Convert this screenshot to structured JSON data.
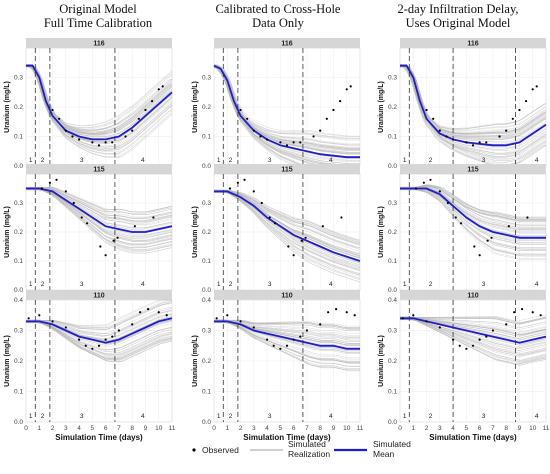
{
  "column_titles": [
    [
      "Original Model",
      "Full Time Calibration"
    ],
    [
      "Calibrated to Cross-Hole",
      "Data Only"
    ],
    [
      "2-day Infiltration Delay,",
      "Uses Original Model"
    ]
  ],
  "legend": {
    "observed": "Observed",
    "realization": [
      "Simulated",
      "Realization"
    ],
    "mean": [
      "Simulated",
      "Mean"
    ]
  },
  "colors": {
    "mean": "#1f1fc8",
    "realization": "#b4b4b4",
    "observed": "#000000",
    "strip": "#d6d6d6",
    "panel_bg": "#ffffff",
    "grid": "#ebebeb"
  },
  "chart_data": {
    "type": "line",
    "xlabel": "Simulation Time (days)",
    "ylabel": "Uranium (mg/L)",
    "xlim": [
      0,
      11
    ],
    "xticks": [
      0,
      1,
      2,
      3,
      4,
      5,
      6,
      7,
      8,
      9,
      10,
      11
    ],
    "rows": [
      {
        "strip": "116",
        "ylim": [
          0,
          0.4
        ],
        "yticks": [
          0.0,
          0.1,
          0.2,
          0.3
        ]
      },
      {
        "strip": "115",
        "ylim": [
          0,
          0.4
        ],
        "yticks": [
          0.0,
          0.1,
          0.2,
          0.3
        ]
      },
      {
        "strip": "110",
        "ylim": [
          0,
          0.4
        ],
        "yticks": [
          0.0,
          0.1,
          0.2,
          0.3,
          0.4
        ]
      }
    ],
    "phase_lines": {
      "columns_1_2": [
        0.7,
        1.8,
        6.7
      ],
      "column_3": [
        0.7,
        4.0,
        8.7
      ]
    },
    "phase_labels": {
      "columns_1_2": [
        {
          "t": "1",
          "x": 0.35
        },
        {
          "t": "2",
          "x": 1.25
        },
        {
          "t": "3",
          "x": 4.2
        },
        {
          "t": "4",
          "x": 8.8
        }
      ],
      "column_3": [
        {
          "t": "1",
          "x": 0.35
        },
        {
          "t": "2",
          "x": 2.3
        },
        {
          "t": "3",
          "x": 6.3
        },
        {
          "t": "4",
          "x": 10.3
        }
      ]
    },
    "series": [
      {
        "name": "Observed",
        "panel": "116",
        "points": [
          [
            2.0,
            0.19
          ],
          [
            2.5,
            0.16
          ],
          [
            3.0,
            0.12
          ],
          [
            3.5,
            0.1
          ],
          [
            4.0,
            0.09
          ],
          [
            5.0,
            0.08
          ],
          [
            5.5,
            0.07
          ],
          [
            6.0,
            0.08
          ],
          [
            6.5,
            0.08
          ],
          [
            7.5,
            0.1
          ],
          [
            8.0,
            0.12
          ],
          [
            8.5,
            0.16
          ],
          [
            9.0,
            0.19
          ],
          [
            9.5,
            0.22
          ],
          [
            10.0,
            0.26
          ],
          [
            10.3,
            0.27
          ]
        ]
      },
      {
        "name": "Observed",
        "panel": "115",
        "points": [
          [
            1.2,
            0.35
          ],
          [
            1.8,
            0.37
          ],
          [
            2.3,
            0.38
          ],
          [
            3.0,
            0.34
          ],
          [
            3.6,
            0.3
          ],
          [
            4.2,
            0.25
          ],
          [
            4.6,
            0.23
          ],
          [
            5.6,
            0.15
          ],
          [
            6.0,
            0.12
          ],
          [
            6.6,
            0.17
          ],
          [
            6.9,
            0.18
          ],
          [
            8.2,
            0.22
          ],
          [
            9.6,
            0.25
          ]
        ]
      },
      {
        "name": "Observed",
        "panel": "110",
        "points": [
          [
            0.2,
            0.34
          ],
          [
            1.0,
            0.35
          ],
          [
            2.0,
            0.33
          ],
          [
            3.0,
            0.31
          ],
          [
            4.0,
            0.27
          ],
          [
            4.5,
            0.25
          ],
          [
            5.0,
            0.24
          ],
          [
            5.5,
            0.25
          ],
          [
            6.0,
            0.27
          ],
          [
            6.5,
            0.28
          ],
          [
            7.0,
            0.3
          ],
          [
            8.0,
            0.32
          ],
          [
            8.6,
            0.36
          ],
          [
            9.2,
            0.37
          ],
          [
            10.0,
            0.36
          ],
          [
            10.6,
            0.35
          ]
        ]
      },
      {
        "name": "Simulated Mean",
        "panel": "116",
        "column": 1,
        "points": [
          [
            0,
            0.34
          ],
          [
            0.5,
            0.34
          ],
          [
            1,
            0.3
          ],
          [
            1.5,
            0.22
          ],
          [
            2,
            0.17
          ],
          [
            3,
            0.12
          ],
          [
            4,
            0.1
          ],
          [
            5,
            0.09
          ],
          [
            6,
            0.09
          ],
          [
            7,
            0.1
          ],
          [
            8,
            0.13
          ],
          [
            9,
            0.17
          ],
          [
            10,
            0.21
          ],
          [
            11,
            0.25
          ]
        ]
      },
      {
        "name": "Simulated Mean",
        "panel": "116",
        "column": 2,
        "points": [
          [
            0,
            0.34
          ],
          [
            0.5,
            0.33
          ],
          [
            1,
            0.29
          ],
          [
            1.5,
            0.22
          ],
          [
            2,
            0.17
          ],
          [
            3,
            0.12
          ],
          [
            4,
            0.09
          ],
          [
            5,
            0.07
          ],
          [
            6,
            0.06
          ],
          [
            7,
            0.05
          ],
          [
            8,
            0.04
          ],
          [
            9,
            0.035
          ],
          [
            10,
            0.03
          ],
          [
            11,
            0.03
          ]
        ]
      },
      {
        "name": "Simulated Mean",
        "panel": "116",
        "column": 3,
        "points": [
          [
            0,
            0.34
          ],
          [
            0.5,
            0.34
          ],
          [
            1,
            0.3
          ],
          [
            1.5,
            0.22
          ],
          [
            2,
            0.16
          ],
          [
            3,
            0.11
          ],
          [
            4,
            0.09
          ],
          [
            5,
            0.08
          ],
          [
            6,
            0.075
          ],
          [
            7,
            0.07
          ],
          [
            8,
            0.07
          ],
          [
            9,
            0.08
          ],
          [
            10,
            0.11
          ],
          [
            11,
            0.14
          ]
        ]
      },
      {
        "name": "Simulated Mean",
        "panel": "115",
        "column": 1,
        "points": [
          [
            0,
            0.35
          ],
          [
            1,
            0.35
          ],
          [
            2,
            0.34
          ],
          [
            3,
            0.31
          ],
          [
            4,
            0.28
          ],
          [
            5,
            0.25
          ],
          [
            6,
            0.22
          ],
          [
            7,
            0.21
          ],
          [
            8,
            0.2
          ],
          [
            9,
            0.2
          ],
          [
            10,
            0.21
          ],
          [
            11,
            0.22
          ]
        ]
      },
      {
        "name": "Simulated Mean",
        "panel": "115",
        "column": 2,
        "points": [
          [
            0,
            0.34
          ],
          [
            1,
            0.34
          ],
          [
            2,
            0.32
          ],
          [
            3,
            0.29
          ],
          [
            4,
            0.25
          ],
          [
            5,
            0.22
          ],
          [
            6,
            0.19
          ],
          [
            7,
            0.17
          ],
          [
            8,
            0.15
          ],
          [
            9,
            0.13
          ],
          [
            10,
            0.115
          ],
          [
            11,
            0.1
          ]
        ]
      },
      {
        "name": "Simulated Mean",
        "panel": "115",
        "column": 3,
        "points": [
          [
            0,
            0.35
          ],
          [
            1,
            0.35
          ],
          [
            2,
            0.35
          ],
          [
            3,
            0.33
          ],
          [
            4,
            0.29
          ],
          [
            5,
            0.25
          ],
          [
            6,
            0.22
          ],
          [
            7,
            0.2
          ],
          [
            8,
            0.19
          ],
          [
            9,
            0.18
          ],
          [
            10,
            0.18
          ],
          [
            11,
            0.18
          ]
        ]
      },
      {
        "name": "Simulated Mean",
        "panel": "110",
        "column": 1,
        "points": [
          [
            0,
            0.33
          ],
          [
            1,
            0.33
          ],
          [
            2,
            0.32
          ],
          [
            3,
            0.3
          ],
          [
            4,
            0.28
          ],
          [
            5,
            0.27
          ],
          [
            6,
            0.26
          ],
          [
            7,
            0.27
          ],
          [
            8,
            0.29
          ],
          [
            9,
            0.31
          ],
          [
            10,
            0.33
          ],
          [
            11,
            0.34
          ]
        ]
      },
      {
        "name": "Simulated Mean",
        "panel": "110",
        "column": 2,
        "points": [
          [
            0,
            0.33
          ],
          [
            1,
            0.33
          ],
          [
            2,
            0.32
          ],
          [
            3,
            0.3
          ],
          [
            4,
            0.29
          ],
          [
            5,
            0.28
          ],
          [
            6,
            0.27
          ],
          [
            7,
            0.26
          ],
          [
            8,
            0.25
          ],
          [
            9,
            0.25
          ],
          [
            10,
            0.24
          ],
          [
            11,
            0.24
          ]
        ]
      },
      {
        "name": "Simulated Mean",
        "panel": "110",
        "column": 3,
        "points": [
          [
            0,
            0.34
          ],
          [
            1,
            0.34
          ],
          [
            2,
            0.33
          ],
          [
            3,
            0.32
          ],
          [
            4,
            0.31
          ],
          [
            5,
            0.3
          ],
          [
            6,
            0.29
          ],
          [
            7,
            0.28
          ],
          [
            8,
            0.27
          ],
          [
            9,
            0.26
          ],
          [
            10,
            0.27
          ],
          [
            11,
            0.28
          ]
        ]
      }
    ]
  }
}
